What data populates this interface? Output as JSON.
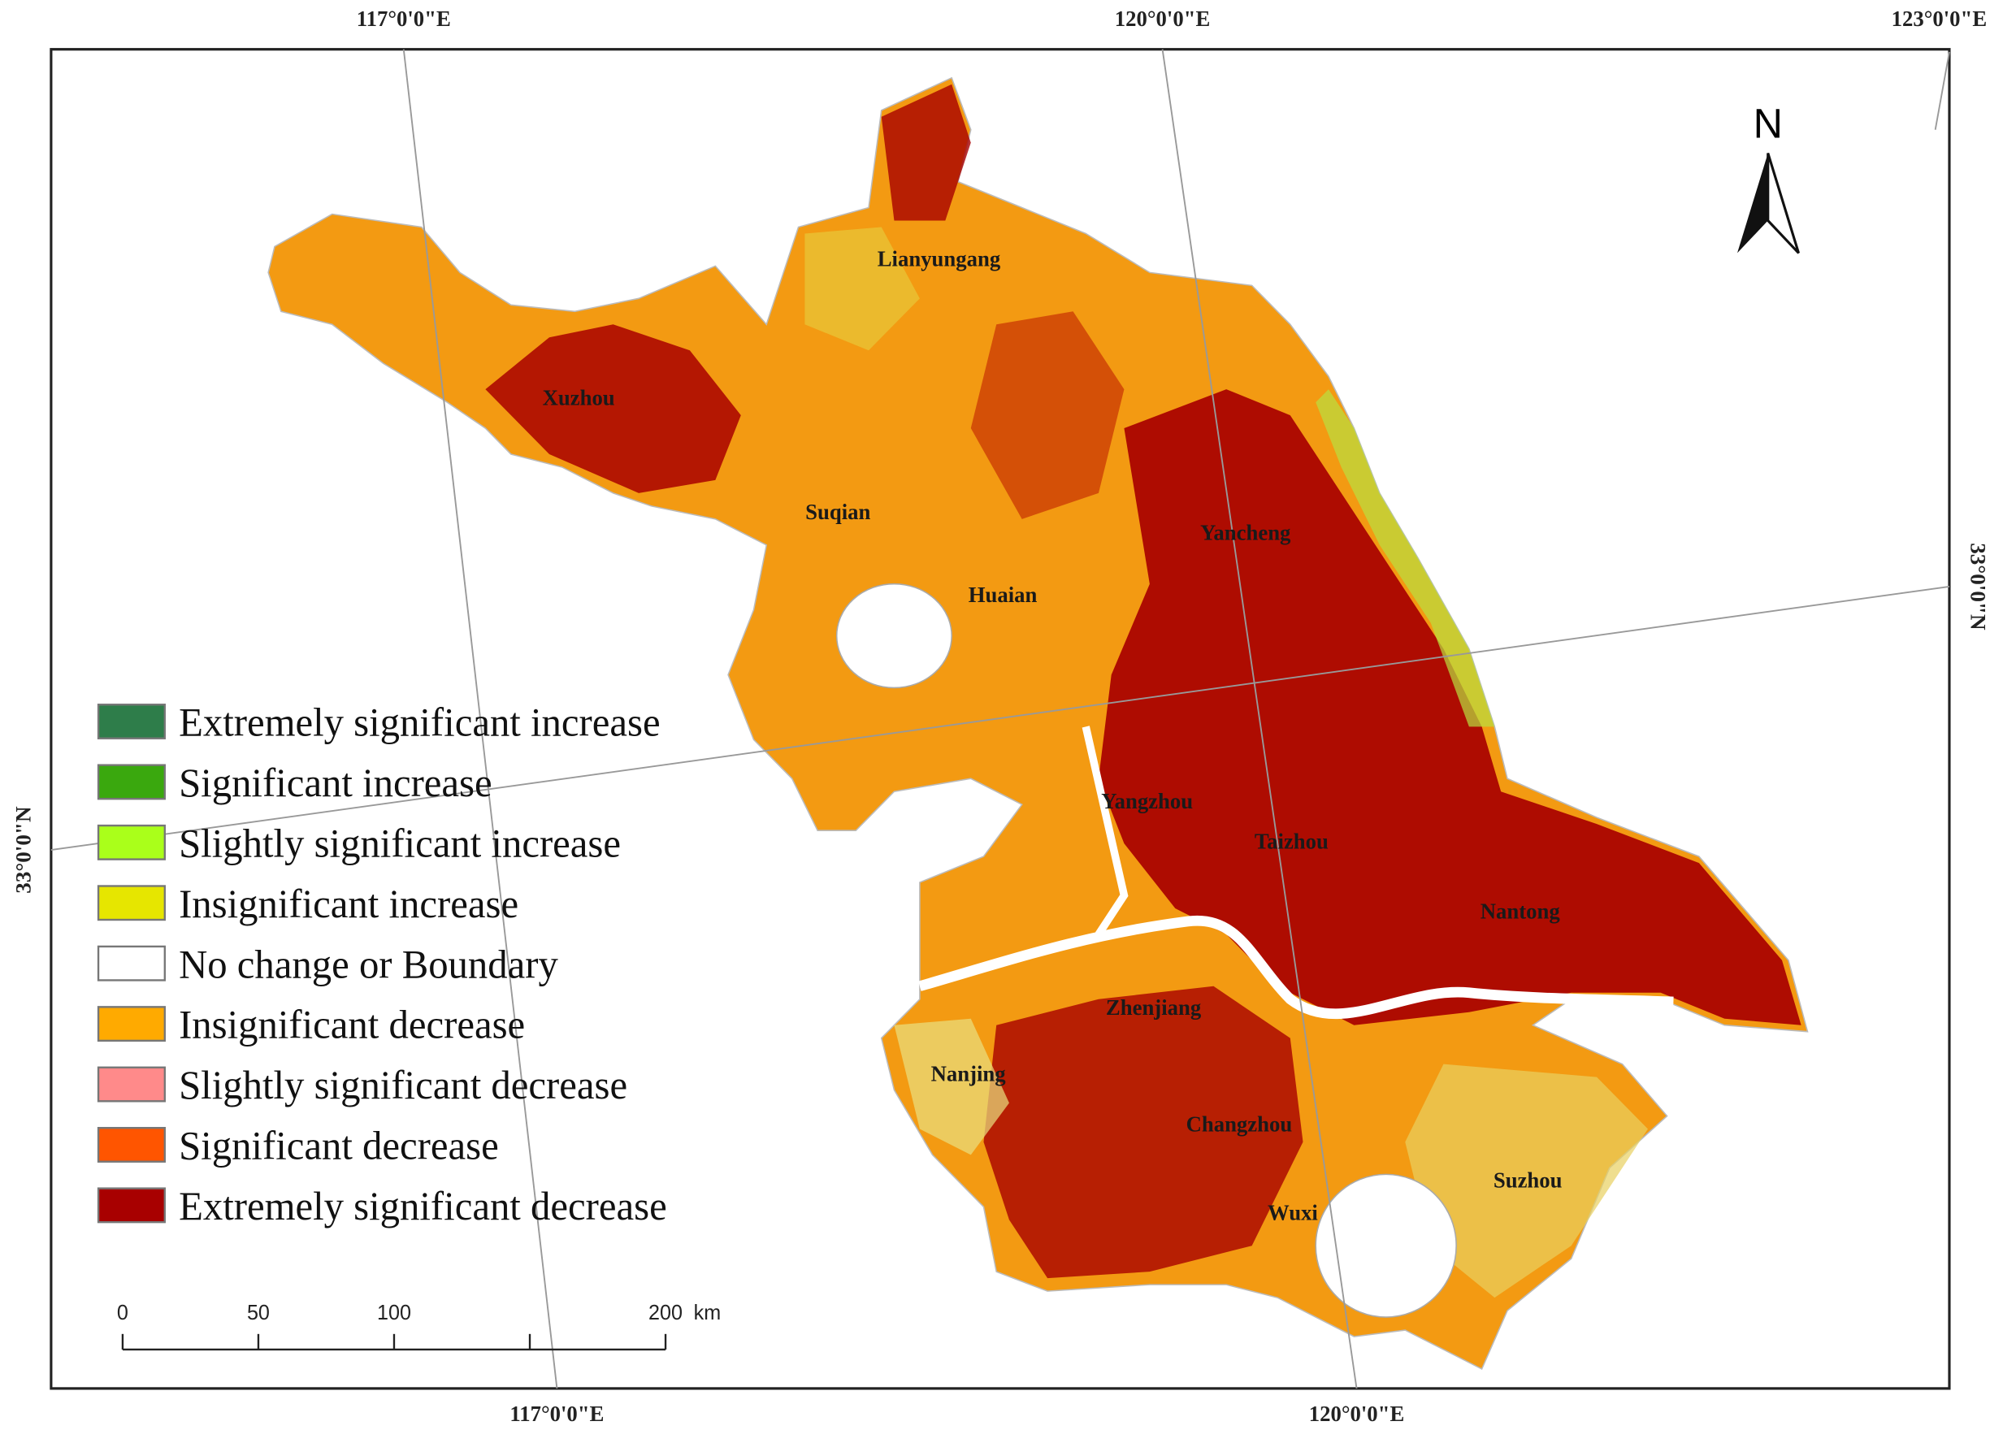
{
  "map": {
    "graticule": {
      "top": [
        "117°0'0\"E",
        "120°0'0\"E",
        "123°0'0\"E"
      ],
      "bottom": [
        "117°0'0\"E",
        "120°0'0\"E"
      ],
      "left": "33°0'0\"N",
      "right": "33°0'0\"N"
    },
    "north_arrow": "N",
    "cities": [
      "Lianyungang",
      "Xuzhou",
      "Suqian",
      "Yancheng",
      "Huaian",
      "Yangzhou",
      "Taizhou",
      "Nantong",
      "Zhenjiang",
      "Nanjing",
      "Changzhou",
      "Suzhou",
      "Wuxi"
    ],
    "legend": [
      {
        "label": "Extremely significant increase",
        "color": "#2e7d4a"
      },
      {
        "label": "Significant increase",
        "color": "#3aa80e"
      },
      {
        "label": "Slightly significant increase",
        "color": "#aaff1a"
      },
      {
        "label": "Insignificant increase",
        "color": "#e6e600"
      },
      {
        "label": "No change or Boundary",
        "color": "#ffffff"
      },
      {
        "label": "Insignificant decrease",
        "color": "#ffaa00"
      },
      {
        "label": "Slightly significant decrease",
        "color": "#ff8a8a"
      },
      {
        "label": "Significant decrease",
        "color": "#ff5500"
      },
      {
        "label": "Extremely significant decrease",
        "color": "#a80000"
      }
    ],
    "scale_bar": {
      "ticks": [
        0,
        50,
        100,
        200
      ],
      "unit": "km"
    }
  }
}
